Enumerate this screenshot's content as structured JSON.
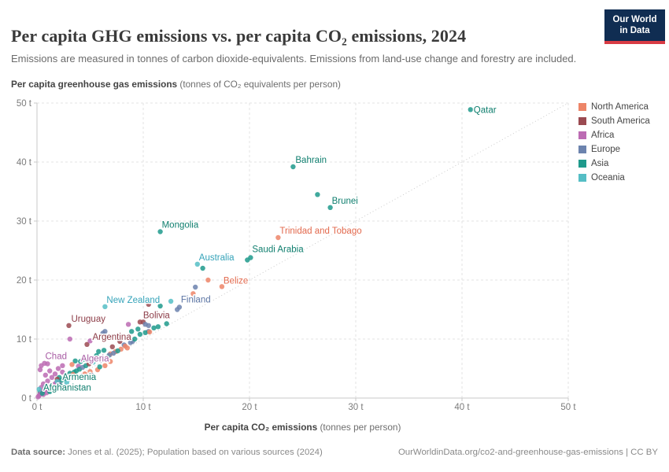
{
  "header": {
    "title": "Per capita GHG emissions vs. per capita CO₂ emissions, 2024",
    "subtitle": "Emissions are measured in tonnes of carbon dioxide-equivalents. Emissions from land-use change and forestry are included.",
    "logo": {
      "line1": "Our World",
      "line2": "in Data",
      "bg": "#102D52",
      "accent": "#D83B44"
    }
  },
  "footer": {
    "source_label": "Data source:",
    "source_text": " Jones et al. (2025); Population based on various sources (2024)",
    "link_text": "OurWorldinData.org/co2-and-greenhouse-gas-emissions | CC BY"
  },
  "chart_data": {
    "type": "scatter",
    "title": "Per capita GHG emissions vs. per capita CO₂ emissions, 2024",
    "xlabel": "Per capita CO₂ emissions",
    "xlabel_note": "(tonnes per person)",
    "ylabel": "Per capita greenhouse gas emissions",
    "ylabel_note": "(tonnes of CO₂ equivalents per person)",
    "xlim": [
      0,
      50
    ],
    "ylim": [
      0,
      50
    ],
    "xticks": [
      0,
      10,
      20,
      30,
      40,
      50
    ],
    "yticks": [
      0,
      10,
      20,
      30,
      40,
      50
    ],
    "xtick_labels": [
      "0 t",
      "10 t",
      "20 t",
      "30 t",
      "40 t",
      "50 t"
    ],
    "ytick_labels": [
      "0 t",
      "10 t",
      "20 t",
      "30 t",
      "40 t",
      "50 t"
    ],
    "grid": true,
    "identity_line": true,
    "legend_position": "right",
    "colors": {
      "grid": "#E3E3E3",
      "axis": "#C9C9C9",
      "identity": "#CBCBCB",
      "tick_text": "#7B7B7B"
    },
    "continents": [
      {
        "name": "North America",
        "color": "#ED8568",
        "label_color": "#E2694D"
      },
      {
        "name": "South America",
        "color": "#9B4A51",
        "label_color": "#8C3C47"
      },
      {
        "name": "Africa",
        "color": "#BC6BB3",
        "label_color": "#A85CA4"
      },
      {
        "name": "Europe",
        "color": "#6C83AE",
        "label_color": "#5B74A3"
      },
      {
        "name": "Asia",
        "color": "#1F9A8C",
        "label_color": "#0F7E6E"
      },
      {
        "name": "Oceania",
        "color": "#55BEC5",
        "label_color": "#35A3B9"
      }
    ],
    "points": [
      [
        40.8,
        48.9,
        "Asia",
        "Qatar",
        4,
        4
      ],
      [
        24.1,
        39.2,
        "Asia",
        "Bahrain",
        3,
        -5
      ],
      [
        27.6,
        32.3,
        "Asia",
        "Brunei",
        2,
        -5
      ],
      [
        11.6,
        28.2,
        "Asia",
        "Mongolia",
        2,
        -5
      ],
      [
        22.7,
        27.2,
        "North America",
        "Trinidad and Tobago",
        2,
        -5
      ],
      [
        20.1,
        23.8,
        "Asia",
        "Saudi Arabia",
        2,
        -7
      ],
      [
        15.1,
        22.7,
        "Oceania",
        "Australia",
        2,
        -5
      ],
      [
        17.4,
        18.9,
        "North America",
        "Belize",
        2,
        -4
      ],
      [
        6.4,
        15.5,
        "Oceania",
        "New Zealand",
        2,
        -5
      ],
      [
        13.4,
        15.4,
        "Europe",
        "Finland",
        2,
        -6
      ],
      [
        3.0,
        12.3,
        "South America",
        "Uruguay",
        3,
        -5
      ],
      [
        9.7,
        12.9,
        "South America",
        "Bolivia",
        4,
        -5
      ],
      [
        4.7,
        9.1,
        "South America",
        "Argentina",
        7,
        -6
      ],
      [
        1.0,
        5.8,
        "Africa",
        "Chad",
        -3,
        -6
      ],
      [
        3.9,
        5.4,
        "Africa",
        "Algeria",
        3,
        -6
      ],
      [
        2.1,
        3.5,
        "Asia",
        "Armenia",
        4,
        3
      ],
      [
        0.3,
        1.0,
        "Asia",
        "Afghanistan",
        4,
        -2
      ],
      [
        26.4,
        34.5,
        "Asia"
      ],
      [
        15.6,
        22.0,
        "Asia"
      ],
      [
        16.1,
        20.0,
        "North America"
      ],
      [
        14.9,
        18.8,
        "Europe"
      ],
      [
        14.7,
        17.7,
        "North America"
      ],
      [
        12.6,
        16.4,
        "Oceania"
      ],
      [
        10.5,
        15.9,
        "South America"
      ],
      [
        11.6,
        15.6,
        "Asia"
      ],
      [
        19.8,
        23.4,
        "Asia"
      ],
      [
        13.2,
        15.0,
        "Europe"
      ],
      [
        10.0,
        12.9,
        "South America"
      ],
      [
        10.2,
        12.5,
        "Europe"
      ],
      [
        10.5,
        12.3,
        "Europe"
      ],
      [
        11.0,
        11.9,
        "Asia"
      ],
      [
        11.4,
        12.1,
        "Asia"
      ],
      [
        10.5,
        11.3,
        "Europe"
      ],
      [
        9.7,
        10.8,
        "Asia"
      ],
      [
        8.6,
        12.5,
        "Africa"
      ],
      [
        6.4,
        11.3,
        "Europe"
      ],
      [
        6.2,
        11.0,
        "Europe"
      ],
      [
        3.1,
        10.0,
        "Africa"
      ],
      [
        5.0,
        9.7,
        "Africa"
      ],
      [
        8.9,
        11.3,
        "Asia"
      ],
      [
        9.5,
        11.7,
        "Asia"
      ],
      [
        10.2,
        11.1,
        "Asia"
      ],
      [
        10.6,
        11.2,
        "North America"
      ],
      [
        12.2,
        12.6,
        "Asia"
      ],
      [
        9.0,
        9.6,
        "Europe"
      ],
      [
        8.2,
        9.0,
        "Europe"
      ],
      [
        8.8,
        9.4,
        "Europe"
      ],
      [
        9.2,
        10.0,
        "Asia"
      ],
      [
        7.8,
        9.6,
        "South America"
      ],
      [
        7.1,
        8.7,
        "South America"
      ],
      [
        7.4,
        7.9,
        "North America"
      ],
      [
        7.9,
        8.3,
        "North America"
      ],
      [
        8.5,
        8.5,
        "North America"
      ],
      [
        6.9,
        7.5,
        "North America"
      ],
      [
        8.3,
        8.8,
        "North America"
      ],
      [
        5.8,
        7.9,
        "Asia"
      ],
      [
        6.3,
        8.1,
        "Asia"
      ],
      [
        7.6,
        8.0,
        "Asia"
      ],
      [
        5.6,
        7.2,
        "Asia"
      ],
      [
        4.4,
        6.6,
        "Asia"
      ],
      [
        4.8,
        6.9,
        "Europe"
      ],
      [
        4.1,
        6.2,
        "Asia"
      ],
      [
        3.6,
        6.3,
        "Asia"
      ],
      [
        2.6,
        6.9,
        "Africa"
      ],
      [
        3.3,
        5.7,
        "North America"
      ],
      [
        0.4,
        5.5,
        "Africa"
      ],
      [
        0.7,
        5.9,
        "Africa"
      ],
      [
        2.4,
        5.5,
        "Africa"
      ],
      [
        1.2,
        4.6,
        "Africa"
      ],
      [
        0.8,
        3.9,
        "Africa"
      ],
      [
        0.3,
        4.8,
        "Africa"
      ],
      [
        5.0,
        4.5,
        "North America"
      ],
      [
        5.7,
        4.8,
        "North America"
      ],
      [
        6.4,
        5.5,
        "North America"
      ],
      [
        4.7,
        3.5,
        "Europe"
      ],
      [
        5.2,
        3.8,
        "Europe"
      ],
      [
        3.5,
        4.4,
        "Asia"
      ],
      [
        1.9,
        3.2,
        "South America"
      ],
      [
        0.2,
        0.4,
        "Africa"
      ],
      [
        0.3,
        0.7,
        "Africa"
      ],
      [
        0.5,
        1.0,
        "Africa"
      ],
      [
        0.7,
        1.3,
        "Africa"
      ],
      [
        0.9,
        1.6,
        "Africa"
      ],
      [
        1.1,
        1.4,
        "Africa"
      ],
      [
        1.3,
        2.0,
        "Africa"
      ],
      [
        1.6,
        2.3,
        "Africa"
      ],
      [
        1.8,
        2.6,
        "Africa"
      ],
      [
        2.1,
        2.4,
        "Africa"
      ],
      [
        2.3,
        3.0,
        "Asia"
      ],
      [
        2.6,
        3.3,
        "Asia"
      ],
      [
        0.4,
        1.8,
        "Africa"
      ],
      [
        0.6,
        2.4,
        "Africa"
      ],
      [
        1.0,
        2.9,
        "Africa"
      ],
      [
        1.4,
        3.5,
        "Africa"
      ],
      [
        2.9,
        3.7,
        "Asia"
      ],
      [
        3.1,
        4.2,
        "Asia"
      ],
      [
        3.4,
        4.0,
        "North America"
      ],
      [
        3.7,
        4.6,
        "Asia"
      ],
      [
        4.0,
        4.9,
        "Asia"
      ],
      [
        4.3,
        5.2,
        "Europe"
      ],
      [
        4.6,
        5.5,
        "Asia"
      ],
      [
        2.4,
        4.4,
        "Africa"
      ],
      [
        2.0,
        5.0,
        "Africa"
      ],
      [
        1.7,
        4.1,
        "Africa"
      ],
      [
        0.9,
        0.9,
        "Africa"
      ],
      [
        1.2,
        1.1,
        "Asia"
      ],
      [
        1.5,
        1.7,
        "Asia"
      ],
      [
        1.9,
        1.9,
        "Africa"
      ],
      [
        2.2,
        2.1,
        "Asia"
      ],
      [
        0.1,
        0.2,
        "Africa"
      ],
      [
        0.6,
        0.6,
        "Africa"
      ],
      [
        2.8,
        2.6,
        "Oceania"
      ],
      [
        3.0,
        3.2,
        "Oceania"
      ],
      [
        5.3,
        6.1,
        "Oceania"
      ],
      [
        4.9,
        5.8,
        "South America"
      ],
      [
        5.5,
        6.7,
        "South America"
      ],
      [
        6.8,
        7.3,
        "Europe"
      ],
      [
        6.0,
        6.4,
        "Europe"
      ],
      [
        6.6,
        6.9,
        "Asia"
      ],
      [
        7.2,
        7.6,
        "Europe"
      ],
      [
        2.5,
        1.9,
        "Asia"
      ],
      [
        3.8,
        3.4,
        "Asia"
      ],
      [
        4.5,
        4.1,
        "North America"
      ],
      [
        5.9,
        5.3,
        "Asia"
      ],
      [
        6.9,
        6.2,
        "North America"
      ],
      [
        0.8,
        1.9,
        "Oceania"
      ],
      [
        1.9,
        2.8,
        "Oceania"
      ],
      [
        0.2,
        1.5,
        "Oceania"
      ],
      [
        0.5,
        0.8,
        "Asia"
      ]
    ]
  }
}
